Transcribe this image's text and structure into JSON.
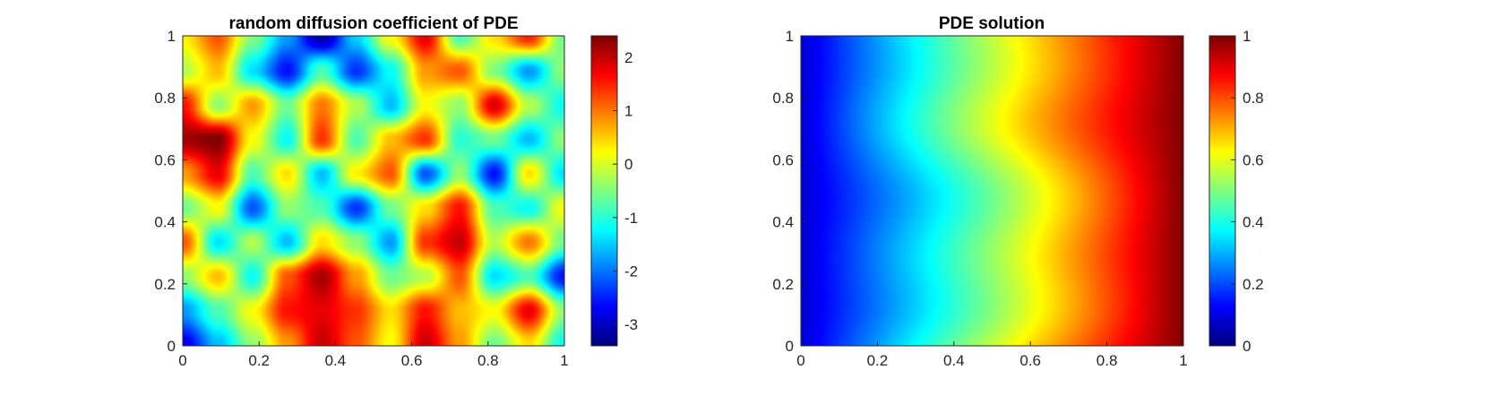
{
  "chart_data": [
    {
      "type": "heatmap",
      "title": "random diffusion coefficient of PDE",
      "xlabel": "",
      "ylabel": "",
      "xlim": [
        0,
        1
      ],
      "ylim": [
        0,
        1
      ],
      "x_ticks": [
        "0",
        "0.2",
        "0.4",
        "0.6",
        "0.8",
        "1"
      ],
      "y_ticks": [
        "0",
        "0.2",
        "0.4",
        "0.6",
        "0.8",
        "1"
      ],
      "colormap": "jet",
      "colorbar": {
        "limits": [
          -3.4,
          2.4
        ],
        "ticks": [
          "-3",
          "-2",
          "-1",
          "0",
          "1",
          "2"
        ],
        "tick_values": [
          -3,
          -2,
          -1,
          0,
          1,
          2
        ]
      },
      "value_grid_description_rows_top_to_bottom": [
        [
          0.3,
          1.2,
          -0.5,
          -1.8,
          -3.2,
          -1.5,
          0.2,
          1.8,
          -0.8,
          0.4,
          1.5,
          -0.6
        ],
        [
          -0.2,
          0.6,
          -1.4,
          -2.6,
          -0.8,
          -2.4,
          -1.2,
          0.8,
          1.2,
          -0.5,
          -1.8,
          -0.4
        ],
        [
          1.6,
          -0.4,
          0.8,
          -0.6,
          1.0,
          -0.2,
          -1.6,
          0.2,
          -0.4,
          1.9,
          -0.2,
          -1.2
        ],
        [
          2.2,
          2.4,
          0.2,
          -1.2,
          1.4,
          -0.8,
          0.6,
          1.4,
          -1.0,
          -0.6,
          -1.6,
          -0.4
        ],
        [
          0.8,
          1.8,
          -0.8,
          0.4,
          -1.6,
          0.3,
          1.2,
          -2.2,
          -0.4,
          -2.6,
          0.4,
          -1.4
        ],
        [
          -0.6,
          0.2,
          -2.2,
          -0.4,
          -0.8,
          -2.4,
          -0.6,
          0.4,
          1.6,
          -0.8,
          -1.2,
          0.2
        ],
        [
          1.2,
          -1.4,
          -0.2,
          -1.6,
          0.4,
          -0.4,
          -1.8,
          1.4,
          2.0,
          -0.2,
          1.0,
          -0.6
        ],
        [
          -0.4,
          0.6,
          -1.2,
          1.2,
          2.2,
          0.8,
          -0.6,
          -0.2,
          1.2,
          -1.4,
          -0.8,
          -2.6
        ],
        [
          -1.8,
          -0.8,
          0.2,
          1.6,
          1.8,
          1.4,
          0.4,
          1.6,
          0.6,
          0.2,
          1.8,
          -0.4
        ],
        [
          -2.8,
          -1.6,
          -0.4,
          0.8,
          2.0,
          1.2,
          0.2,
          2.0,
          0.8,
          -0.6,
          0.4,
          -1.2
        ]
      ]
    },
    {
      "type": "heatmap",
      "title": "PDE solution",
      "xlabel": "",
      "ylabel": "",
      "xlim": [
        0,
        1
      ],
      "ylim": [
        0,
        1
      ],
      "x_ticks": [
        "0",
        "0.2",
        "0.4",
        "0.6",
        "0.8",
        "1"
      ],
      "y_ticks": [
        "0",
        "0.2",
        "0.4",
        "0.6",
        "0.8",
        "1"
      ],
      "colormap": "jet",
      "colorbar": {
        "limits": [
          0,
          1
        ],
        "ticks": [
          "0",
          "0.2",
          "0.4",
          "0.6",
          "0.8",
          "1"
        ],
        "tick_values": [
          0,
          0.2,
          0.4,
          0.6,
          0.8,
          1
        ]
      },
      "solution_description": "value increases monotonically from about 0.1 at x=0 to about 1 at x=1, with wavy contour fronts"
    }
  ]
}
